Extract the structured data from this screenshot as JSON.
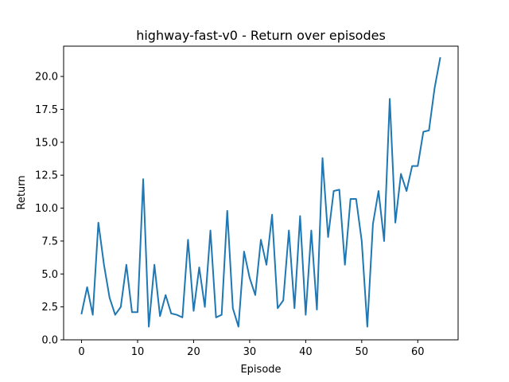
{
  "chart_data": {
    "type": "line",
    "title": "highway-fast-v0 - Return over episodes",
    "xlabel": "Episode",
    "ylabel": "Return",
    "xlim": [
      -3.2,
      67.2
    ],
    "ylim": [
      0,
      22.3
    ],
    "xticks": [
      0,
      10,
      20,
      30,
      40,
      50,
      60
    ],
    "yticks": [
      0,
      2.5,
      5,
      7.5,
      10,
      12.5,
      15,
      17.5,
      20
    ],
    "ytick_labels": [
      "0.0",
      "2.5",
      "5.0",
      "7.5",
      "10.0",
      "12.5",
      "15.0",
      "17.5",
      "20.0"
    ],
    "grid": false,
    "series": [
      {
        "color": "#1f77b4",
        "x": [
          0,
          1,
          2,
          3,
          4,
          5,
          6,
          7,
          8,
          9,
          10,
          11,
          12,
          13,
          14,
          15,
          16,
          17,
          18,
          19,
          20,
          21,
          22,
          23,
          24,
          25,
          26,
          27,
          28,
          29,
          30,
          31,
          32,
          33,
          34,
          35,
          36,
          37,
          38,
          39,
          40,
          41,
          42,
          43,
          44,
          45,
          46,
          47,
          48,
          49,
          50,
          51,
          52,
          53,
          54,
          55,
          56,
          57,
          58,
          59,
          60,
          61,
          62,
          63,
          64
        ],
        "y": [
          2.0,
          4.0,
          1.9,
          8.9,
          5.7,
          3.2,
          1.9,
          2.5,
          5.7,
          2.1,
          2.1,
          12.2,
          1.0,
          5.7,
          1.8,
          3.4,
          2.0,
          1.9,
          1.7,
          7.6,
          2.2,
          5.5,
          2.5,
          8.3,
          1.7,
          1.9,
          9.8,
          2.4,
          1.0,
          6.7,
          4.7,
          3.4,
          7.6,
          5.7,
          9.5,
          2.4,
          3.0,
          8.3,
          2.4,
          9.4,
          1.9,
          8.3,
          2.3,
          13.8,
          7.8,
          11.3,
          11.4,
          5.7,
          10.7,
          10.7,
          7.5,
          1.0,
          8.8,
          11.3,
          7.5,
          18.3,
          8.9,
          12.6,
          11.3,
          13.2,
          13.2,
          15.8,
          15.9,
          19.1,
          21.4
        ]
      }
    ]
  }
}
